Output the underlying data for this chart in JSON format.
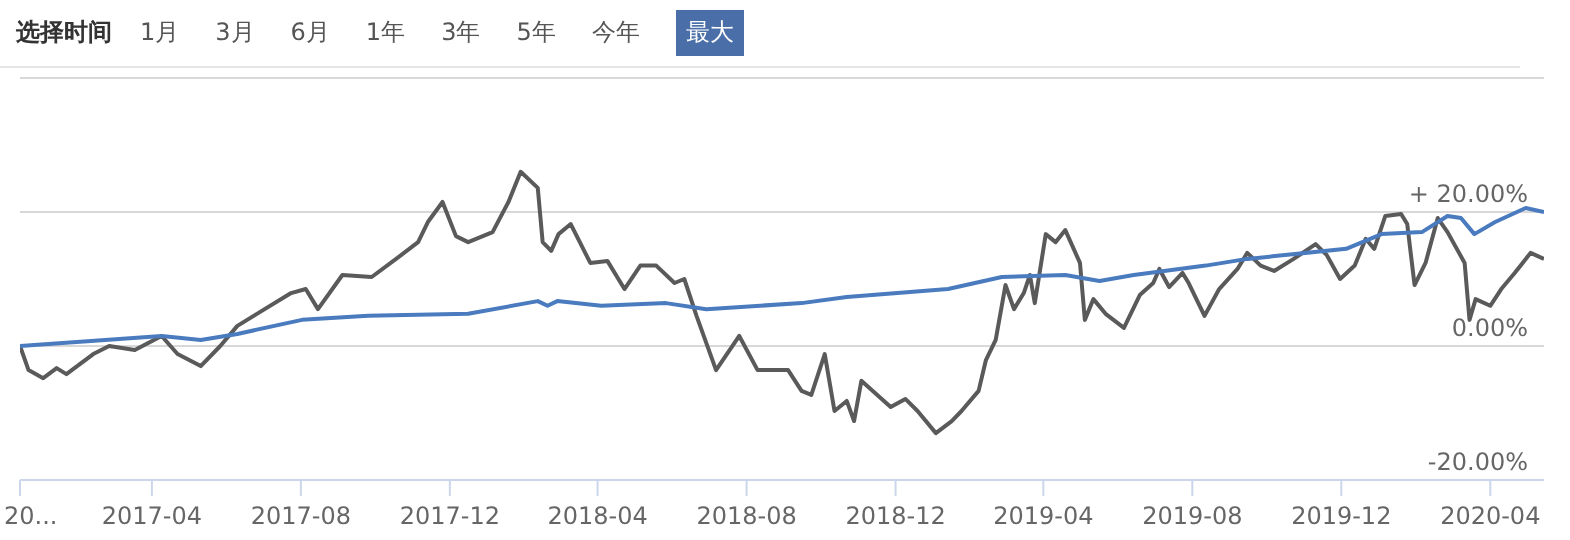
{
  "chart_data": {
    "type": "line",
    "annotations": [
      "选择时间",
      "1月",
      "3月",
      "6月",
      "1年",
      "3年",
      "5年",
      "今年",
      "最大"
    ],
    "xlim": [
      "2016-12-14",
      "2020-05-15"
    ],
    "xticks": [
      {
        "value": "2016-12-14",
        "label": "20..."
      },
      "2017-04",
      "2017-08",
      "2017-12",
      "2018-04",
      "2018-08",
      "2018-12",
      "2019-04",
      "2019-08",
      "2019-12",
      "2020-04"
    ],
    "ylim": [
      -20,
      40
    ],
    "yticks": [
      {
        "value": 20,
        "label": "+ 20.00%"
      },
      {
        "value": 0,
        "label": "0.00%"
      },
      {
        "value": -20,
        "label": "-20.00%"
      }
    ],
    "grid": "y",
    "series": [
      {
        "color": "#5a5a5a",
        "x": [
          "2016-12-14",
          "2016-12-21",
          "2017-01-02",
          "2017-01-13",
          "2017-01-21",
          "2017-02-01",
          "2017-02-12",
          "2017-02-25",
          "2017-03-18",
          "2017-04-09",
          "2017-04-22",
          "2017-05-11",
          "2017-05-27",
          "2017-06-10",
          "2017-06-26",
          "2017-07-24",
          "2017-08-05",
          "2017-08-15",
          "2017-09-04",
          "2017-09-28",
          "2017-10-18",
          "2017-11-05",
          "2017-11-13",
          "2017-11-25",
          "2017-12-06",
          "2017-12-16",
          "2018-01-05",
          "2018-01-18",
          "2018-01-28",
          "2018-02-11",
          "2018-02-15",
          "2018-02-22",
          "2018-02-28",
          "2018-03-10",
          "2018-03-26",
          "2018-04-09",
          "2018-04-23",
          "2018-05-06",
          "2018-05-19",
          "2018-06-03",
          "2018-06-11",
          "2018-06-21",
          "2018-07-07",
          "2018-07-26",
          "2018-08-10",
          "2018-09-04",
          "2018-09-15",
          "2018-09-23",
          "2018-10-04",
          "2018-10-12",
          "2018-10-22",
          "2018-10-28",
          "2018-11-03",
          "2018-11-16",
          "2018-11-27",
          "2018-12-09",
          "2018-12-19",
          "2019-01-03",
          "2019-01-16",
          "2019-01-24",
          "2019-02-07",
          "2019-02-13",
          "2019-02-21",
          "2019-03-01",
          "2019-03-08",
          "2019-03-16",
          "2019-03-21",
          "2019-03-25",
          "2019-04-03",
          "2019-04-11",
          "2019-04-19",
          "2019-05-01",
          "2019-05-05",
          "2019-05-12",
          "2019-05-22",
          "2019-06-06",
          "2019-06-19",
          "2019-06-30",
          "2019-07-05",
          "2019-07-13",
          "2019-07-24",
          "2019-07-29",
          "2019-08-11",
          "2019-08-23",
          "2019-09-07",
          "2019-09-15",
          "2019-09-26",
          "2019-10-07",
          "2019-10-23",
          "2019-11-10",
          "2019-11-19",
          "2019-11-30",
          "2019-12-12",
          "2019-12-21",
          "2019-12-28",
          "2020-01-06",
          "2020-01-19",
          "2020-01-24",
          "2020-01-30",
          "2020-02-08",
          "2020-02-18",
          "2020-02-26",
          "2020-03-11",
          "2020-03-15",
          "2020-03-20",
          "2020-04-01",
          "2020-04-10",
          "2020-04-21",
          "2020-05-04",
          "2020-05-15"
        ],
        "values": [
          0,
          -3.6,
          -4.8,
          -3.3,
          -4.2,
          -2.7,
          -1.2,
          0,
          -0.6,
          1.5,
          -1.2,
          -3,
          0,
          3,
          4.8,
          7.9,
          8.5,
          5.5,
          10.6,
          10.3,
          13,
          15.5,
          18.5,
          21.5,
          16.4,
          15.5,
          17,
          21.5,
          26,
          23.6,
          15.5,
          14.2,
          16.7,
          18.2,
          12.4,
          12.7,
          8.5,
          12,
          12,
          9.4,
          10,
          4.5,
          -3.6,
          1.5,
          -3.6,
          -3.6,
          -6.7,
          -7.3,
          -1.2,
          -9.7,
          -8.2,
          -11.2,
          -5.2,
          -7.3,
          -9.1,
          -7.9,
          -9.7,
          -13,
          -11.2,
          -9.7,
          -6.7,
          -2.1,
          0.9,
          9.1,
          5.5,
          7.9,
          10.6,
          6.4,
          16.7,
          15.5,
          17.3,
          12.4,
          3.9,
          7,
          4.8,
          2.7,
          7.6,
          9.4,
          11.5,
          8.8,
          10.9,
          9.4,
          4.5,
          8.5,
          11.5,
          13.9,
          12,
          11.2,
          13,
          15.2,
          13.6,
          10,
          12,
          16,
          14.5,
          19.4,
          19.7,
          18.2,
          9.1,
          12.4,
          19.1,
          17,
          12.4,
          3.9,
          7,
          6,
          8.5,
          10.9,
          13.9,
          13
        ]
      },
      {
        "color": "#4a7bbf",
        "x": [
          "2016-12-14",
          "2017-04-09",
          "2017-05-11",
          "2017-06-10",
          "2017-08-02",
          "2017-09-25",
          "2017-12-16",
          "2018-02-11",
          "2018-02-19",
          "2018-02-27",
          "2018-04-04",
          "2018-05-27",
          "2018-06-29",
          "2018-09-15",
          "2018-10-22",
          "2019-01-13",
          "2019-02-26",
          "2019-04-19",
          "2019-05-17",
          "2019-06-14",
          "2019-08-12",
          "2019-09-15",
          "2019-12-05",
          "2020-01-03",
          "2020-02-05",
          "2020-02-26",
          "2020-03-08",
          "2020-03-19",
          "2020-04-05",
          "2020-04-30",
          "2020-05-15"
        ],
        "values": [
          0,
          1.5,
          0.9,
          1.8,
          3.9,
          4.5,
          4.8,
          6.7,
          6,
          6.7,
          6,
          6.4,
          5.5,
          6.4,
          7.3,
          8.5,
          10.3,
          10.6,
          9.7,
          10.6,
          12,
          13,
          14.5,
          16.7,
          17,
          19.4,
          19.1,
          16.7,
          18.5,
          20.6,
          20
        ]
      }
    ]
  }
}
